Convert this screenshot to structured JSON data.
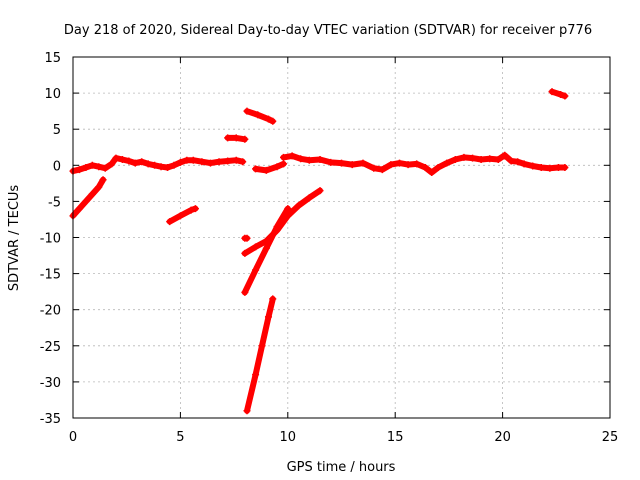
{
  "chart_data": {
    "type": "scatter",
    "title": "Day 218 of 2020, Sidereal Day-to-day VTEC variation (SDTVAR) for receiver p776",
    "xlabel": "GPS time / hours",
    "ylabel": "SDTVAR / TECUs",
    "xlim": [
      0,
      25
    ],
    "ylim": [
      -35,
      15
    ],
    "x_ticks": [
      0,
      5,
      10,
      15,
      20,
      25
    ],
    "y_ticks": [
      -35,
      -30,
      -25,
      -20,
      -15,
      -10,
      -5,
      0,
      5,
      10,
      15
    ],
    "grid": true,
    "marker_color": "#ff0000",
    "series": [
      {
        "segments": [
          [
            [
              0.0,
              -0.8
            ],
            [
              0.3,
              -0.6
            ],
            [
              0.6,
              -0.3
            ],
            [
              0.9,
              0.0
            ],
            [
              1.2,
              -0.2
            ],
            [
              1.5,
              -0.4
            ],
            [
              1.8,
              0.2
            ],
            [
              2.0,
              1.0
            ],
            [
              2.3,
              0.8
            ],
            [
              2.6,
              0.6
            ],
            [
              2.9,
              0.3
            ],
            [
              3.2,
              0.5
            ],
            [
              3.5,
              0.2
            ],
            [
              3.8,
              0.0
            ],
            [
              4.1,
              -0.2
            ],
            [
              4.4,
              -0.3
            ],
            [
              4.7,
              0.0
            ],
            [
              5.0,
              0.4
            ],
            [
              5.3,
              0.7
            ],
            [
              5.6,
              0.7
            ],
            [
              6.0,
              0.5
            ],
            [
              6.4,
              0.3
            ],
            [
              6.8,
              0.5
            ],
            [
              7.2,
              0.6
            ],
            [
              7.6,
              0.7
            ],
            [
              7.9,
              0.5
            ]
          ],
          [
            [
              0.0,
              -7.0
            ],
            [
              0.3,
              -6.0
            ],
            [
              0.6,
              -5.0
            ],
            [
              0.9,
              -4.0
            ],
            [
              1.2,
              -3.0
            ],
            [
              1.4,
              -2.0
            ]
          ],
          [
            [
              4.5,
              -7.8
            ],
            [
              5.0,
              -7.0
            ],
            [
              5.5,
              -6.2
            ],
            [
              5.7,
              -6.0
            ]
          ],
          [
            [
              7.2,
              3.8
            ],
            [
              7.6,
              3.8
            ],
            [
              8.0,
              3.6
            ]
          ],
          [
            [
              8.1,
              7.5
            ],
            [
              8.6,
              7.0
            ],
            [
              9.1,
              6.4
            ],
            [
              9.3,
              6.1
            ]
          ],
          [
            [
              8.5,
              -0.5
            ],
            [
              9.0,
              -0.7
            ],
            [
              9.5,
              -0.2
            ],
            [
              9.8,
              0.2
            ]
          ],
          [
            [
              9.8,
              1.1
            ],
            [
              10.2,
              1.3
            ],
            [
              10.6,
              0.9
            ],
            [
              11.0,
              0.7
            ],
            [
              11.5,
              0.8
            ],
            [
              12.0,
              0.4
            ],
            [
              12.5,
              0.3
            ],
            [
              13.0,
              0.1
            ],
            [
              13.5,
              0.3
            ],
            [
              14.0,
              -0.4
            ],
            [
              14.4,
              -0.6
            ],
            [
              14.8,
              0.1
            ],
            [
              15.2,
              0.3
            ],
            [
              15.6,
              0.1
            ],
            [
              16.0,
              0.2
            ],
            [
              16.4,
              -0.3
            ],
            [
              16.7,
              -1.0
            ],
            [
              17.0,
              -0.3
            ],
            [
              17.4,
              0.3
            ],
            [
              17.8,
              0.8
            ],
            [
              18.2,
              1.1
            ],
            [
              18.6,
              1.0
            ],
            [
              19.0,
              0.8
            ],
            [
              19.4,
              0.9
            ],
            [
              19.8,
              0.8
            ],
            [
              20.1,
              1.4
            ],
            [
              20.4,
              0.6
            ],
            [
              20.7,
              0.5
            ],
            [
              21.0,
              0.2
            ],
            [
              21.4,
              -0.1
            ],
            [
              21.8,
              -0.3
            ],
            [
              22.2,
              -0.4
            ],
            [
              22.6,
              -0.3
            ],
            [
              22.9,
              -0.3
            ]
          ],
          [
            [
              8.0,
              -10.1
            ],
            [
              8.1,
              -10.1
            ]
          ],
          [
            [
              8.0,
              -12.2
            ],
            [
              8.5,
              -11.3
            ],
            [
              9.0,
              -10.5
            ],
            [
              9.5,
              -9.0
            ],
            [
              10.0,
              -7.0
            ],
            [
              10.5,
              -5.6
            ],
            [
              11.0,
              -4.5
            ],
            [
              11.5,
              -3.5
            ]
          ],
          [
            [
              8.0,
              -17.6
            ],
            [
              8.5,
              -14.5
            ],
            [
              9.0,
              -11.5
            ],
            [
              9.5,
              -8.5
            ],
            [
              10.0,
              -6.0
            ]
          ],
          [
            [
              8.1,
              -34.0
            ],
            [
              8.5,
              -29.0
            ],
            [
              8.8,
              -25.0
            ],
            [
              9.1,
              -21.0
            ],
            [
              9.3,
              -18.5
            ]
          ],
          [
            [
              22.3,
              10.2
            ],
            [
              22.7,
              9.8
            ],
            [
              22.9,
              9.6
            ]
          ]
        ]
      }
    ]
  }
}
